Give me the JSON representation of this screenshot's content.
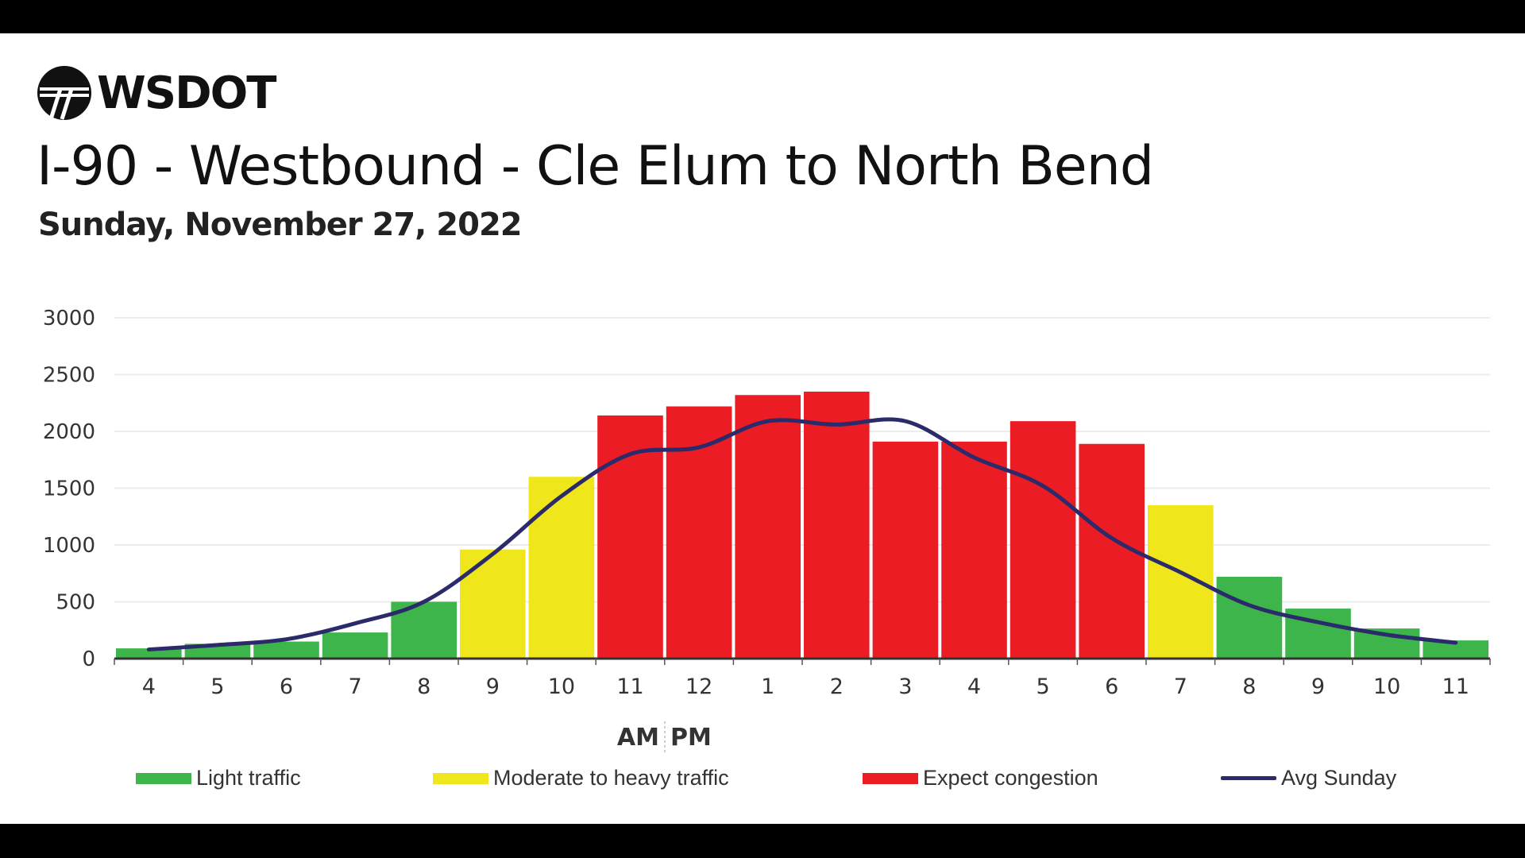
{
  "logo": {
    "text": "WSDOT"
  },
  "title": "I-90 - Westbound - Cle Elum to North Bend",
  "subtitle": "Sunday, November 27, 2022",
  "colors": {
    "light": "#3db54a",
    "moderate": "#f0e61c",
    "congestion": "#ec1c24",
    "avg": "#2b2a6b"
  },
  "chart_data": {
    "type": "bar",
    "categories": [
      "4",
      "5",
      "6",
      "7",
      "8",
      "9",
      "10",
      "11",
      "12",
      "1",
      "2",
      "3",
      "4",
      "5",
      "6",
      "7",
      "8",
      "9",
      "10",
      "11"
    ],
    "am_pm_label": {
      "am": "AM",
      "pm": "PM"
    },
    "yticks": [
      "0",
      "500",
      "1000",
      "1500",
      "2000",
      "2500",
      "3000"
    ],
    "ylim": [
      0,
      3000
    ],
    "grid": true,
    "series": [
      {
        "name": "Sunday, November 27, 2022",
        "type": "bar",
        "values": [
          90,
          130,
          150,
          230,
          500,
          960,
          1600,
          2140,
          2220,
          2320,
          2350,
          1910,
          1910,
          2090,
          1890,
          1350,
          720,
          440,
          265,
          160
        ],
        "levels": [
          "light",
          "light",
          "light",
          "light",
          "light",
          "moderate",
          "moderate",
          "congestion",
          "congestion",
          "congestion",
          "congestion",
          "congestion",
          "congestion",
          "congestion",
          "congestion",
          "moderate",
          "light",
          "light",
          "light",
          "light"
        ]
      },
      {
        "name": "Avg Sunday",
        "type": "line",
        "values": [
          80,
          120,
          170,
          310,
          500,
          920,
          1430,
          1800,
          1860,
          2090,
          2060,
          2090,
          1770,
          1520,
          1060,
          760,
          470,
          320,
          210,
          140
        ]
      }
    ],
    "legend": [
      {
        "key": "light",
        "label": "Light traffic"
      },
      {
        "key": "moderate",
        "label": "Moderate to heavy traffic"
      },
      {
        "key": "congestion",
        "label": "Expect congestion"
      },
      {
        "key": "avg",
        "label": "Avg Sunday"
      }
    ],
    "legend_position": "bottom"
  }
}
